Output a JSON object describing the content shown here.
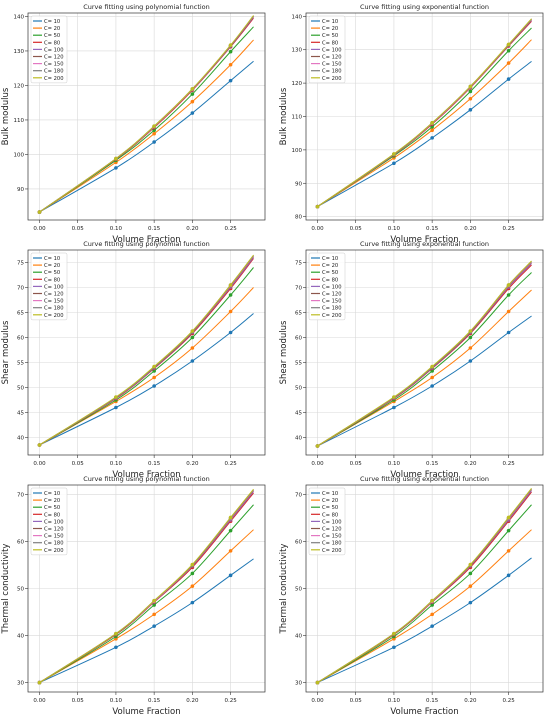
{
  "figure": {
    "colors": [
      "#1f77b4",
      "#ff7f0e",
      "#2ca02c",
      "#d62728",
      "#9467bd",
      "#8c564b",
      "#e377c2",
      "#7f7f7f",
      "#bcbd22"
    ],
    "legend_labels": [
      "C= 10",
      "C= 20",
      "C= 50",
      "C= 80",
      "C= 100",
      "C= 120",
      "C= 150",
      "C= 180",
      "C= 200"
    ]
  },
  "chart_data": [
    {
      "type": "line",
      "title": "Curve fitting using polynomial function",
      "xlabel": "Volume Fraction",
      "ylabel": "Bulk modulus",
      "xlim": [
        -0.015,
        0.295
      ],
      "ylim": [
        81,
        141
      ],
      "xticks": [
        0.0,
        0.05,
        0.1,
        0.15,
        0.2,
        0.25
      ],
      "yticks": [
        90,
        100,
        110,
        120,
        130,
        140
      ],
      "grid": true,
      "legend": "top-left",
      "x": [
        0.0,
        0.1,
        0.15,
        0.2,
        0.25
      ],
      "series": [
        {
          "name": "C= 10",
          "values": [
            83.3,
            96.1,
            103.6,
            112.0,
            121.4
          ],
          "fit_end": 127.0
        },
        {
          "name": "C= 20",
          "values": [
            83.3,
            97.7,
            106.0,
            115.3,
            126.0
          ],
          "fit_end": 133.2
        },
        {
          "name": "C= 50",
          "values": [
            83.3,
            98.3,
            107.0,
            117.5,
            129.8
          ],
          "fit_end": 137.0
        },
        {
          "name": "C= 80",
          "values": [
            83.3,
            98.6,
            107.8,
            118.6,
            131.2
          ],
          "fit_end": 139.5
        },
        {
          "name": "C= 100",
          "values": [
            83.3,
            98.7,
            108.0,
            118.8,
            131.4
          ],
          "fit_end": 139.8
        },
        {
          "name": "C= 120",
          "values": [
            83.3,
            98.7,
            108.1,
            118.9,
            131.5
          ],
          "fit_end": 140.0
        },
        {
          "name": "C= 150",
          "values": [
            83.3,
            98.8,
            108.1,
            118.9,
            131.6
          ],
          "fit_end": 140.1
        },
        {
          "name": "C= 180",
          "values": [
            83.3,
            98.8,
            108.2,
            119.0,
            131.6
          ],
          "fit_end": 140.2
        },
        {
          "name": "C= 200",
          "values": [
            83.3,
            98.8,
            108.2,
            119.0,
            131.7
          ],
          "fit_end": 140.3
        }
      ]
    },
    {
      "type": "line",
      "title": "Curve fitting using exponential function",
      "xlabel": "Volume Fraction",
      "ylabel": "Bulk modulus",
      "xlim": [
        -0.015,
        0.295
      ],
      "ylim": [
        79,
        141
      ],
      "xticks": [
        0.0,
        0.05,
        0.1,
        0.15,
        0.2,
        0.25
      ],
      "yticks": [
        80,
        90,
        100,
        110,
        120,
        130,
        140
      ],
      "grid": true,
      "legend": "top-left",
      "x": [
        0.0,
        0.1,
        0.15,
        0.2,
        0.25
      ],
      "series": [
        {
          "name": "C= 10",
          "values": [
            83.0,
            96.0,
            103.6,
            112.0,
            121.2
          ],
          "fit_end": 126.5
        },
        {
          "name": "C= 20",
          "values": [
            83.0,
            97.6,
            105.9,
            115.3,
            126.0
          ],
          "fit_end": 133.0
        },
        {
          "name": "C= 50",
          "values": [
            83.0,
            98.2,
            106.9,
            117.5,
            129.7
          ],
          "fit_end": 136.5
        },
        {
          "name": "C= 80",
          "values": [
            83.0,
            98.5,
            107.7,
            118.6,
            131.1
          ],
          "fit_end": 138.5
        },
        {
          "name": "C= 100",
          "values": [
            83.0,
            98.6,
            107.9,
            118.8,
            131.3
          ],
          "fit_end": 138.8
        },
        {
          "name": "C= 120",
          "values": [
            83.0,
            98.7,
            108.0,
            118.9,
            131.4
          ],
          "fit_end": 139.0
        },
        {
          "name": "C= 150",
          "values": [
            83.0,
            98.7,
            108.0,
            118.9,
            131.5
          ],
          "fit_end": 139.1
        },
        {
          "name": "C= 180",
          "values": [
            83.0,
            98.7,
            108.1,
            119.0,
            131.5
          ],
          "fit_end": 139.2
        },
        {
          "name": "C= 200",
          "values": [
            83.0,
            98.8,
            108.1,
            119.0,
            131.6
          ],
          "fit_end": 139.3
        }
      ]
    },
    {
      "type": "line",
      "title": "Curve fitting using polynomial function",
      "xlabel": "Volume Fraction",
      "ylabel": "Shear modulus",
      "xlim": [
        -0.015,
        0.295
      ],
      "ylim": [
        36.5,
        77.5
      ],
      "xticks": [
        0.0,
        0.05,
        0.1,
        0.15,
        0.2,
        0.25
      ],
      "yticks": [
        40,
        45,
        50,
        55,
        60,
        65,
        70,
        75
      ],
      "grid": true,
      "legend": "top-left",
      "x": [
        0.0,
        0.1,
        0.15,
        0.2,
        0.25
      ],
      "series": [
        {
          "name": "C= 10",
          "values": [
            38.5,
            46.0,
            50.3,
            55.3,
            61.0
          ],
          "fit_end": 64.8
        },
        {
          "name": "C= 20",
          "values": [
            38.5,
            47.2,
            52.0,
            57.9,
            65.2
          ],
          "fit_end": 70.0
        },
        {
          "name": "C= 50",
          "values": [
            38.5,
            47.5,
            53.3,
            60.0,
            68.5
          ],
          "fit_end": 74.0
        },
        {
          "name": "C= 80",
          "values": [
            38.5,
            47.8,
            53.8,
            60.8,
            69.8
          ],
          "fit_end": 75.8
        },
        {
          "name": "C= 100",
          "values": [
            38.5,
            47.9,
            53.9,
            61.0,
            70.1
          ],
          "fit_end": 76.0
        },
        {
          "name": "C= 120",
          "values": [
            38.5,
            48.0,
            54.0,
            61.1,
            70.3
          ],
          "fit_end": 76.2
        },
        {
          "name": "C= 150",
          "values": [
            38.5,
            48.0,
            54.1,
            61.2,
            70.4
          ],
          "fit_end": 76.3
        },
        {
          "name": "C= 180",
          "values": [
            38.5,
            48.0,
            54.1,
            61.2,
            70.5
          ],
          "fit_end": 76.4
        },
        {
          "name": "C= 200",
          "values": [
            38.5,
            48.1,
            54.2,
            61.3,
            70.5
          ],
          "fit_end": 76.5
        }
      ]
    },
    {
      "type": "line",
      "title": "Curve fitting using exponential function",
      "xlabel": "Volume Fraction",
      "ylabel": "Shear modulus",
      "xlim": [
        -0.015,
        0.295
      ],
      "ylim": [
        36.5,
        77.5
      ],
      "xticks": [
        0.0,
        0.05,
        0.1,
        0.15,
        0.2,
        0.25
      ],
      "yticks": [
        40,
        45,
        50,
        55,
        60,
        65,
        70,
        75
      ],
      "grid": true,
      "legend": "top-left",
      "x": [
        0.0,
        0.1,
        0.15,
        0.2,
        0.25
      ],
      "series": [
        {
          "name": "C= 10",
          "values": [
            38.3,
            46.0,
            50.3,
            55.3,
            61.0
          ],
          "fit_end": 64.3
        },
        {
          "name": "C= 20",
          "values": [
            38.3,
            47.2,
            52.0,
            57.9,
            65.2
          ],
          "fit_end": 69.5
        },
        {
          "name": "C= 50",
          "values": [
            38.3,
            47.5,
            53.3,
            60.0,
            68.5
          ],
          "fit_end": 73.0
        },
        {
          "name": "C= 80",
          "values": [
            38.3,
            47.8,
            53.8,
            60.8,
            69.8
          ],
          "fit_end": 74.5
        },
        {
          "name": "C= 100",
          "values": [
            38.3,
            47.9,
            53.9,
            61.0,
            70.1
          ],
          "fit_end": 74.8
        },
        {
          "name": "C= 120",
          "values": [
            38.3,
            48.0,
            54.0,
            61.1,
            70.3
          ],
          "fit_end": 75.0
        },
        {
          "name": "C= 150",
          "values": [
            38.3,
            48.0,
            54.1,
            61.2,
            70.4
          ],
          "fit_end": 75.1
        },
        {
          "name": "C= 180",
          "values": [
            38.3,
            48.0,
            54.1,
            61.2,
            70.5
          ],
          "fit_end": 75.2
        },
        {
          "name": "C= 200",
          "values": [
            38.3,
            48.1,
            54.2,
            61.3,
            70.5
          ],
          "fit_end": 75.3
        }
      ]
    },
    {
      "type": "line",
      "title": "Curve fitting using polynomial function",
      "xlabel": "Volume Fraction",
      "ylabel": "Thermal conductivity",
      "xlim": [
        -0.015,
        0.295
      ],
      "ylim": [
        28,
        72
      ],
      "xticks": [
        0.0,
        0.05,
        0.1,
        0.15,
        0.2,
        0.25
      ],
      "yticks": [
        30,
        40,
        50,
        60,
        70
      ],
      "grid": true,
      "legend": "top-left",
      "x": [
        0.0,
        0.1,
        0.15,
        0.2,
        0.25
      ],
      "series": [
        {
          "name": "C= 10",
          "values": [
            30.0,
            37.5,
            42.0,
            47.0,
            52.8
          ],
          "fit_end": 56.3
        },
        {
          "name": "C= 20",
          "values": [
            30.0,
            39.3,
            44.5,
            50.5,
            58.0
          ],
          "fit_end": 62.5
        },
        {
          "name": "C= 50",
          "values": [
            30.0,
            39.8,
            46.5,
            53.2,
            62.3
          ],
          "fit_end": 67.8
        },
        {
          "name": "C= 80",
          "values": [
            30.0,
            40.2,
            47.1,
            54.5,
            64.3
          ],
          "fit_end": 70.3
        },
        {
          "name": "C= 100",
          "values": [
            30.0,
            40.3,
            47.2,
            54.8,
            64.6
          ],
          "fit_end": 70.6
        },
        {
          "name": "C= 120",
          "values": [
            30.0,
            40.3,
            47.3,
            54.9,
            64.8
          ],
          "fit_end": 70.8
        },
        {
          "name": "C= 150",
          "values": [
            30.0,
            40.4,
            47.3,
            55.0,
            64.9
          ],
          "fit_end": 70.9
        },
        {
          "name": "C= 180",
          "values": [
            30.0,
            40.4,
            47.4,
            55.0,
            65.0
          ],
          "fit_end": 71.0
        },
        {
          "name": "C= 200",
          "values": [
            30.0,
            40.4,
            47.4,
            55.1,
            65.1
          ],
          "fit_end": 71.1
        }
      ]
    },
    {
      "type": "line",
      "title": "Curve fitting using exponential function",
      "xlabel": "Volume Fraction",
      "ylabel": "Thermal conductivity",
      "xlim": [
        -0.015,
        0.295
      ],
      "ylim": [
        28,
        72
      ],
      "xticks": [
        0.0,
        0.05,
        0.1,
        0.15,
        0.2,
        0.25
      ],
      "yticks": [
        30,
        40,
        50,
        60,
        70
      ],
      "grid": true,
      "legend": "top-left",
      "x": [
        0.0,
        0.1,
        0.15,
        0.2,
        0.25
      ],
      "series": [
        {
          "name": "C= 10",
          "values": [
            30.0,
            37.5,
            42.0,
            47.0,
            52.8
          ],
          "fit_end": 56.5
        },
        {
          "name": "C= 20",
          "values": [
            30.0,
            39.3,
            44.5,
            50.5,
            58.0
          ],
          "fit_end": 62.5
        },
        {
          "name": "C= 50",
          "values": [
            30.0,
            39.8,
            46.5,
            53.2,
            62.3
          ],
          "fit_end": 67.8
        },
        {
          "name": "C= 80",
          "values": [
            30.0,
            40.2,
            47.1,
            54.5,
            64.3
          ],
          "fit_end": 70.5
        },
        {
          "name": "C= 100",
          "values": [
            30.0,
            40.3,
            47.2,
            54.8,
            64.6
          ],
          "fit_end": 70.8
        },
        {
          "name": "C= 120",
          "values": [
            30.0,
            40.3,
            47.3,
            54.9,
            64.8
          ],
          "fit_end": 71.0
        },
        {
          "name": "C= 150",
          "values": [
            30.0,
            40.4,
            47.3,
            55.0,
            64.9
          ],
          "fit_end": 71.1
        },
        {
          "name": "C= 180",
          "values": [
            30.0,
            40.4,
            47.4,
            55.0,
            65.0
          ],
          "fit_end": 71.2
        },
        {
          "name": "C= 200",
          "values": [
            30.0,
            40.4,
            47.4,
            55.1,
            65.1
          ],
          "fit_end": 71.3
        }
      ]
    }
  ]
}
